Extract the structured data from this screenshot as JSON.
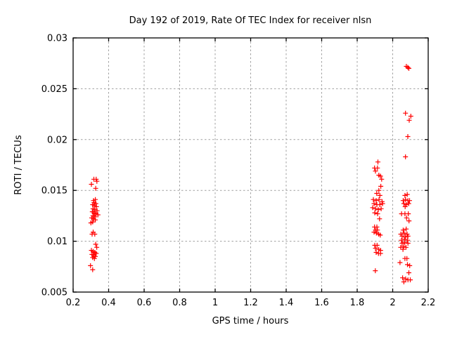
{
  "window": {
    "title": "Day 192 of 2019, Rate Of TEC Index for receiver nlsn"
  },
  "colors": {
    "marker": "#ff0000",
    "grid": "#a0a0a0",
    "axis": "#000000",
    "background": "#ffffff"
  },
  "chart_data": {
    "type": "scatter",
    "title": "Day 192 of 2019, Rate Of TEC Index for receiver nlsn",
    "xlabel": "GPS time / hours",
    "ylabel": "ROTI / TECUs",
    "xlim": [
      0.2,
      2.2
    ],
    "ylim": [
      0.005,
      0.03
    ],
    "xticks": {
      "values": [
        0.2,
        0.4,
        0.6,
        0.8,
        1,
        1.2,
        1.4,
        1.6,
        1.8,
        2,
        2.2
      ],
      "labels": [
        "0.2",
        "0.4",
        "0.6",
        "0.8",
        "1",
        "1.2",
        "1.4",
        "1.6",
        "1.8",
        "2",
        "2.2"
      ]
    },
    "yticks": {
      "values": [
        0.005,
        0.01,
        0.015,
        0.02,
        0.025,
        0.03
      ],
      "labels": [
        "0.005",
        "0.01",
        "0.015",
        "0.02",
        "0.025",
        "0.03"
      ]
    },
    "grid": true,
    "grid_style": "dotted",
    "legend": "none",
    "marker": {
      "shape": "plus",
      "color": "#ff0000",
      "size": 7
    },
    "points": [
      [
        0.317,
        0.0161
      ],
      [
        0.33,
        0.0161
      ],
      [
        0.334,
        0.0159
      ],
      [
        0.303,
        0.0156
      ],
      [
        0.327,
        0.0152
      ],
      [
        0.315,
        0.014
      ],
      [
        0.325,
        0.0141
      ],
      [
        0.318,
        0.0138
      ],
      [
        0.328,
        0.0137
      ],
      [
        0.31,
        0.0136
      ],
      [
        0.32,
        0.0135
      ],
      [
        0.331,
        0.0134
      ],
      [
        0.312,
        0.0132
      ],
      [
        0.322,
        0.0131
      ],
      [
        0.335,
        0.013
      ],
      [
        0.308,
        0.0129
      ],
      [
        0.318,
        0.0128
      ],
      [
        0.328,
        0.0127
      ],
      [
        0.34,
        0.0126
      ],
      [
        0.312,
        0.0125
      ],
      [
        0.322,
        0.0124
      ],
      [
        0.305,
        0.0123
      ],
      [
        0.315,
        0.0122
      ],
      [
        0.325,
        0.0121
      ],
      [
        0.31,
        0.0119
      ],
      [
        0.3,
        0.0118
      ],
      [
        0.313,
        0.0109
      ],
      [
        0.307,
        0.0107
      ],
      [
        0.322,
        0.0107
      ],
      [
        0.327,
        0.0097
      ],
      [
        0.333,
        0.0094
      ],
      [
        0.303,
        0.0091
      ],
      [
        0.313,
        0.009
      ],
      [
        0.322,
        0.0089
      ],
      [
        0.33,
        0.0088
      ],
      [
        0.306,
        0.0087
      ],
      [
        0.316,
        0.0086
      ],
      [
        0.325,
        0.0085
      ],
      [
        0.31,
        0.0084
      ],
      [
        0.32,
        0.0083
      ],
      [
        0.298,
        0.0076
      ],
      [
        0.31,
        0.0072
      ],
      [
        1.917,
        0.0178
      ],
      [
        1.898,
        0.0172
      ],
      [
        1.914,
        0.0172
      ],
      [
        1.903,
        0.0169
      ],
      [
        1.922,
        0.0165
      ],
      [
        1.931,
        0.0164
      ],
      [
        1.938,
        0.0161
      ],
      [
        1.933,
        0.0154
      ],
      [
        1.922,
        0.015
      ],
      [
        1.91,
        0.0147
      ],
      [
        1.928,
        0.0145
      ],
      [
        1.891,
        0.0141
      ],
      [
        1.907,
        0.014
      ],
      [
        1.923,
        0.0141
      ],
      [
        1.94,
        0.0139
      ],
      [
        1.895,
        0.0137
      ],
      [
        1.911,
        0.0136
      ],
      [
        1.927,
        0.0136
      ],
      [
        1.943,
        0.0137
      ],
      [
        1.887,
        0.0133
      ],
      [
        1.903,
        0.0132
      ],
      [
        1.919,
        0.0131
      ],
      [
        1.935,
        0.0132
      ],
      [
        1.899,
        0.0128
      ],
      [
        1.915,
        0.0127
      ],
      [
        1.926,
        0.0122
      ],
      [
        1.898,
        0.0114
      ],
      [
        1.911,
        0.0114
      ],
      [
        1.903,
        0.0111
      ],
      [
        1.914,
        0.0111
      ],
      [
        1.895,
        0.0109
      ],
      [
        1.908,
        0.0108
      ],
      [
        1.921,
        0.0107
      ],
      [
        1.93,
        0.0106
      ],
      [
        1.899,
        0.0096
      ],
      [
        1.912,
        0.0096
      ],
      [
        1.903,
        0.0093
      ],
      [
        1.921,
        0.0092
      ],
      [
        1.932,
        0.0091
      ],
      [
        1.907,
        0.0089
      ],
      [
        1.92,
        0.0088
      ],
      [
        1.931,
        0.0088
      ],
      [
        1.902,
        0.0071
      ],
      [
        2.077,
        0.0272
      ],
      [
        2.085,
        0.0271
      ],
      [
        2.091,
        0.027
      ],
      [
        2.072,
        0.0226
      ],
      [
        2.102,
        0.0223
      ],
      [
        2.093,
        0.0219
      ],
      [
        2.085,
        0.0203
      ],
      [
        2.072,
        0.0183
      ],
      [
        2.069,
        0.0145
      ],
      [
        2.082,
        0.0146
      ],
      [
        2.059,
        0.014
      ],
      [
        2.072,
        0.0141
      ],
      [
        2.086,
        0.014
      ],
      [
        2.095,
        0.014
      ],
      [
        2.063,
        0.0137
      ],
      [
        2.077,
        0.0136
      ],
      [
        2.09,
        0.0137
      ],
      [
        2.07,
        0.0134
      ],
      [
        2.05,
        0.0127
      ],
      [
        2.069,
        0.0127
      ],
      [
        2.088,
        0.0127
      ],
      [
        2.078,
        0.0123
      ],
      [
        2.092,
        0.012
      ],
      [
        2.059,
        0.0111
      ],
      [
        2.076,
        0.0112
      ],
      [
        2.046,
        0.0107
      ],
      [
        2.064,
        0.0108
      ],
      [
        2.081,
        0.0107
      ],
      [
        2.053,
        0.0105
      ],
      [
        2.071,
        0.0104
      ],
      [
        2.086,
        0.0105
      ],
      [
        2.049,
        0.0101
      ],
      [
        2.067,
        0.0102
      ],
      [
        2.084,
        0.0101
      ],
      [
        2.053,
        0.0098
      ],
      [
        2.068,
        0.0099
      ],
      [
        2.086,
        0.0098
      ],
      [
        2.045,
        0.0094
      ],
      [
        2.062,
        0.0095
      ],
      [
        2.075,
        0.0094
      ],
      [
        2.058,
        0.0092
      ],
      [
        2.069,
        0.0083
      ],
      [
        2.08,
        0.0083
      ],
      [
        2.041,
        0.0079
      ],
      [
        2.083,
        0.0077
      ],
      [
        2.096,
        0.0076
      ],
      [
        2.091,
        0.0069
      ],
      [
        2.056,
        0.0064
      ],
      [
        2.073,
        0.0063
      ],
      [
        2.086,
        0.0062
      ],
      [
        2.099,
        0.0062
      ],
      [
        2.063,
        0.006
      ]
    ]
  }
}
